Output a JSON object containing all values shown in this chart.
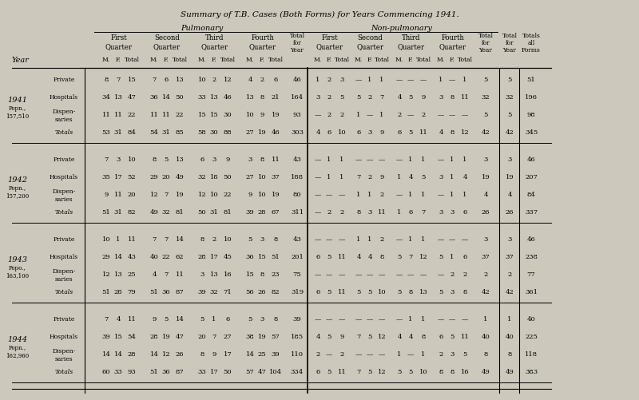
{
  "title": "Summary of T.B. Cases (Both Forms) for Years Commencing 1941.",
  "bg_color": "#ccc8bc",
  "years_info": [
    {
      "year": "1941",
      "popn1": "Popn.,",
      "popn2": "157,510"
    },
    {
      "year": "1942",
      "popn1": "Popn.,",
      "popn2": "157,200"
    },
    {
      "year": "1943",
      "popn1": "Popo.,",
      "popn2": "163,100"
    },
    {
      "year": "1944",
      "popn1": "Popn.,",
      "popn2": "162,960"
    }
  ],
  "row_types": [
    "Private",
    "Hospitals",
    "Dispen-\nsaries",
    "Totals"
  ],
  "data": {
    "1941": {
      "Private": [
        [
          "8",
          "7",
          "15"
        ],
        [
          "7",
          "6",
          "13"
        ],
        [
          "10",
          "2",
          "12"
        ],
        [
          "4",
          "2",
          "6"
        ],
        "46",
        [
          "1",
          "2",
          "3"
        ],
        [
          "—",
          "1",
          "1"
        ],
        [
          "—",
          "—",
          "—"
        ],
        [
          "1",
          "—",
          "1"
        ],
        "5",
        "51"
      ],
      "Hospitals": [
        [
          "34",
          "13",
          "47"
        ],
        [
          "36",
          "14",
          "50"
        ],
        [
          "33",
          "13",
          "46"
        ],
        [
          "13",
          "8",
          "21"
        ],
        "164",
        [
          "3",
          "2",
          "5"
        ],
        [
          "5",
          "2",
          "7"
        ],
        [
          "4",
          "5",
          "9"
        ],
        [
          "3",
          "8",
          "11"
        ],
        "32",
        "196"
      ],
      "Dispen-\nsaries": [
        [
          "11",
          "11",
          "22"
        ],
        [
          "11",
          "11",
          "22"
        ],
        [
          "15",
          "15",
          "30"
        ],
        [
          "10",
          "9",
          "19"
        ],
        "93",
        [
          "—",
          "2",
          "2"
        ],
        [
          "1",
          "—",
          "1"
        ],
        [
          "2",
          "—",
          "2"
        ],
        [
          "—",
          "—",
          "—"
        ],
        "5",
        "98"
      ],
      "Totals": [
        [
          "53",
          "31",
          "84"
        ],
        [
          "54",
          "31",
          "85"
        ],
        [
          "58",
          "30",
          "88"
        ],
        [
          "27",
          "19",
          "46"
        ],
        "303",
        [
          "4",
          "6",
          "10"
        ],
        [
          "6",
          "3",
          "9"
        ],
        [
          "6",
          "5",
          "11"
        ],
        [
          "4",
          "8",
          "12"
        ],
        "42",
        "345"
      ]
    },
    "1942": {
      "Private": [
        [
          "7",
          "3",
          "10"
        ],
        [
          "8",
          "5",
          "13"
        ],
        [
          "6",
          "3",
          "9"
        ],
        [
          "3",
          "8",
          "11"
        ],
        "43",
        [
          "—",
          "1",
          "1"
        ],
        [
          "—",
          "—",
          "—"
        ],
        [
          "—",
          "1",
          "1"
        ],
        [
          "—",
          "1",
          "1"
        ],
        "3",
        "46"
      ],
      "Hospitals": [
        [
          "35",
          "17",
          "52"
        ],
        [
          "29",
          "20",
          "49"
        ],
        [
          "32",
          "18",
          "50"
        ],
        [
          "27",
          "10",
          "37"
        ],
        "188",
        [
          "—",
          "1",
          "1"
        ],
        [
          "7",
          "2",
          "9"
        ],
        [
          "1",
          "4",
          "5"
        ],
        [
          "3",
          "1",
          "4"
        ],
        "19",
        "207"
      ],
      "Dispen-\nsaries": [
        [
          "9",
          "11",
          "20"
        ],
        [
          "12",
          "7",
          "19"
        ],
        [
          "12",
          "10",
          "22"
        ],
        [
          "9",
          "10",
          "19"
        ],
        "80",
        [
          "—",
          "—",
          "—"
        ],
        [
          "1",
          "1",
          "2"
        ],
        [
          "—",
          "1",
          "1"
        ],
        [
          "—",
          "1",
          "1"
        ],
        "4",
        "84"
      ],
      "Totals": [
        [
          "51",
          "31",
          "82"
        ],
        [
          "49",
          "32",
          "81"
        ],
        [
          "50",
          "31",
          "81"
        ],
        [
          "39",
          "28",
          "67"
        ],
        "311",
        [
          "—",
          "2",
          "2"
        ],
        [
          "8",
          "3",
          "11"
        ],
        [
          "1",
          "6",
          "7"
        ],
        [
          "3",
          "3",
          "6"
        ],
        "26",
        "337"
      ]
    },
    "1943": {
      "Private": [
        [
          "10",
          "1",
          "11"
        ],
        [
          "7",
          "7",
          "14"
        ],
        [
          "8",
          "2",
          "10"
        ],
        [
          "5",
          "3",
          "8"
        ],
        "43",
        [
          "—",
          "—",
          "—"
        ],
        [
          "1",
          "1",
          "2"
        ],
        [
          "—",
          "1",
          "1"
        ],
        [
          "—",
          "—",
          "—"
        ],
        "3",
        "46"
      ],
      "Hospitals": [
        [
          "29",
          "14",
          "43"
        ],
        [
          "40",
          "22",
          "62"
        ],
        [
          "28",
          "17",
          "45"
        ],
        [
          "36",
          "15",
          "51"
        ],
        "201",
        [
          "6",
          "5",
          "11"
        ],
        [
          "4",
          "4",
          "8"
        ],
        [
          "5",
          "7",
          "12"
        ],
        [
          "5",
          "1",
          "6"
        ],
        "37",
        "238"
      ],
      "Dispen-\nsaries": [
        [
          "12",
          "13",
          "25"
        ],
        [
          "4",
          "7",
          "11"
        ],
        [
          "3",
          "13",
          "16"
        ],
        [
          "15",
          "8",
          "23"
        ],
        "75",
        [
          "—",
          "—",
          "—"
        ],
        [
          "—",
          "—",
          "—"
        ],
        [
          "—",
          "—",
          "—"
        ],
        [
          "—",
          "2",
          "2"
        ],
        "2",
        "77"
      ],
      "Totals": [
        [
          "51",
          "28",
          "79"
        ],
        [
          "51",
          "36",
          "87"
        ],
        [
          "39",
          "32",
          "71"
        ],
        [
          "56",
          "26",
          "82"
        ],
        "319",
        [
          "6",
          "5",
          "11"
        ],
        [
          "5",
          "5",
          "10"
        ],
        [
          "5",
          "8",
          "13"
        ],
        [
          "5",
          "3",
          "8"
        ],
        "42",
        "361"
      ]
    },
    "1944": {
      "Private": [
        [
          "7",
          "4",
          "11"
        ],
        [
          "9",
          "5",
          "14"
        ],
        [
          "5",
          "1",
          "6"
        ],
        [
          "5",
          "3",
          "8"
        ],
        "39",
        [
          "—",
          "—",
          "—"
        ],
        [
          "—",
          "—",
          "—"
        ],
        [
          "—",
          "1",
          "1"
        ],
        [
          "—",
          "—",
          "—"
        ],
        "1",
        "40"
      ],
      "Hospitals": [
        [
          "39",
          "15",
          "54"
        ],
        [
          "28",
          "19",
          "47"
        ],
        [
          "20",
          "7",
          "27"
        ],
        [
          "38",
          "19",
          "57"
        ],
        "185",
        [
          "4",
          "5",
          "9"
        ],
        [
          "7",
          "5",
          "12"
        ],
        [
          "4",
          "4",
          "8"
        ],
        [
          "6",
          "5",
          "11"
        ],
        "40",
        "225"
      ],
      "Dispen-\nsaries": [
        [
          "14",
          "14",
          "28"
        ],
        [
          "14",
          "12",
          "26"
        ],
        [
          "8",
          "9",
          "17"
        ],
        [
          "14",
          "25",
          "39"
        ],
        "110",
        [
          "2",
          "—",
          "2"
        ],
        [
          "—",
          "—",
          "—"
        ],
        [
          "1",
          "—",
          "1"
        ],
        [
          "2",
          "3",
          "5"
        ],
        "8",
        "118"
      ],
      "Totals": [
        [
          "60",
          "33",
          "93"
        ],
        [
          "51",
          "36",
          "87"
        ],
        [
          "33",
          "17",
          "50"
        ],
        [
          "57",
          "47",
          "104"
        ],
        "334",
        [
          "6",
          "5",
          "11"
        ],
        [
          "7",
          "5",
          "12"
        ],
        [
          "5",
          "5",
          "10"
        ],
        [
          "8",
          "8",
          "16"
        ],
        "49",
        "383"
      ]
    }
  }
}
